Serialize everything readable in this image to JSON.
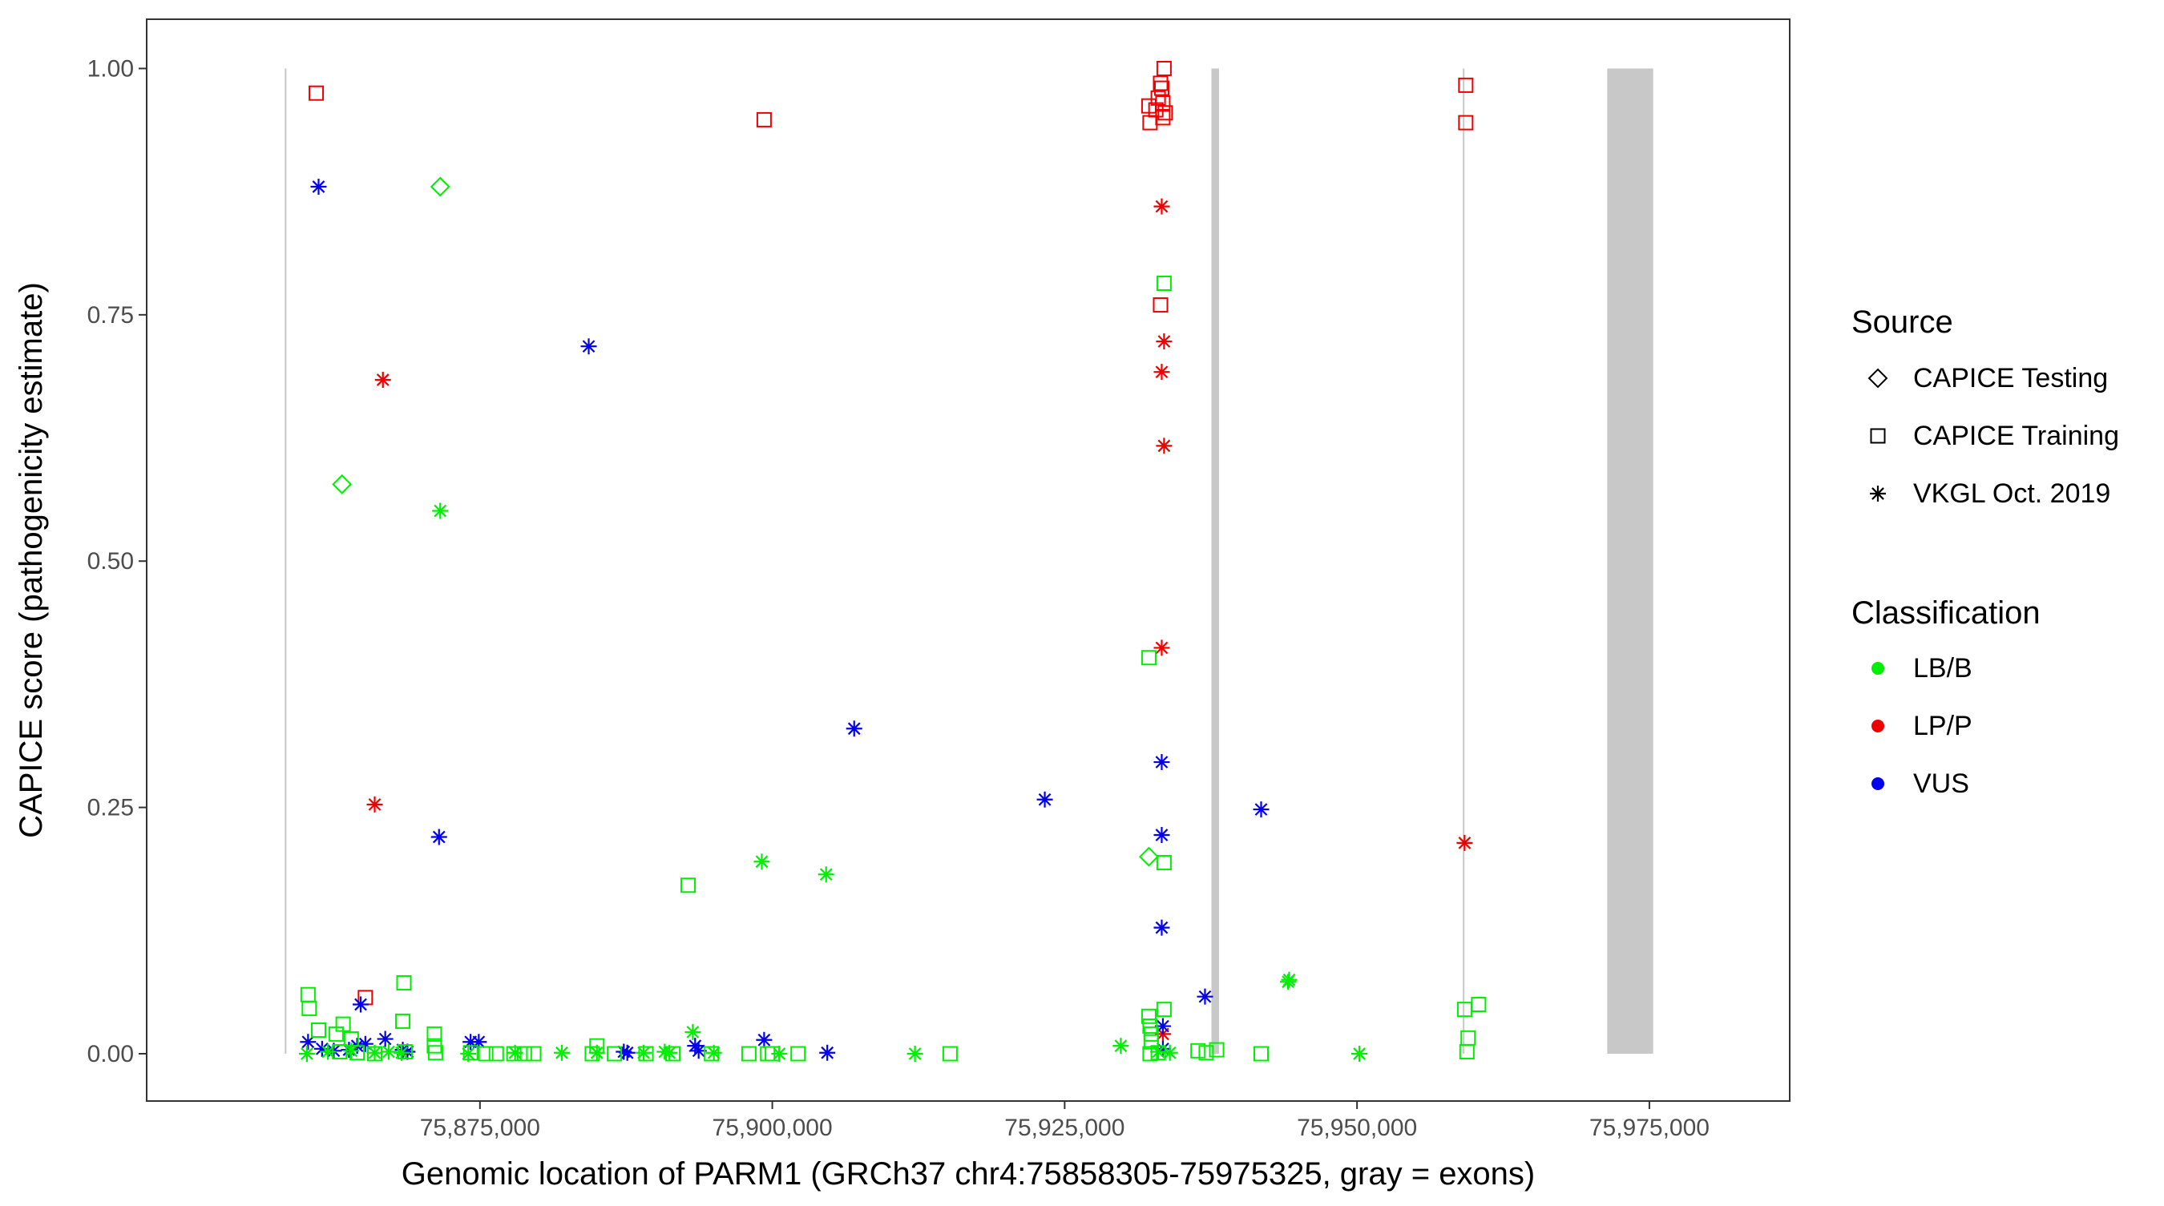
{
  "chart_data": {
    "type": "scatter",
    "xlabel": "Genomic location of PARM1 (GRCh37 chr4:75858305-75975325, gray = exons)",
    "ylabel": "CAPICE score (pathogenicity estimate)",
    "xlim": [
      75846500,
      75987000
    ],
    "ylim": [
      -0.048,
      1.05
    ],
    "x_ticks": [
      75875000,
      75900000,
      75925000,
      75950000,
      75975000
    ],
    "x_tick_labels": [
      "75,875,000",
      "75,900,000",
      "75,925,000",
      "75,950,000",
      "75,975,000"
    ],
    "y_ticks": [
      0,
      0.25,
      0.5,
      0.75,
      1.0
    ],
    "y_tick_labels": [
      "0.00",
      "0.25",
      "0.50",
      "0.75",
      "1.00"
    ],
    "grid": false,
    "legend_position": "right",
    "exons": [
      {
        "start": 75858305,
        "end": 75858450
      },
      {
        "start": 75937550,
        "end": 75938200
      },
      {
        "start": 75959050,
        "end": 75959130
      },
      {
        "start": 75971400,
        "end": 75975325
      }
    ],
    "colors": {
      "LB/B": "#00ee00",
      "LP/P": "#ee0000",
      "VUS": "#0000ee",
      "exon": "#c8c8c8"
    },
    "legends": {
      "source": {
        "title": "Source",
        "items": [
          {
            "key": "testing",
            "label": "CAPICE Testing"
          },
          {
            "key": "training",
            "label": "CAPICE Training"
          },
          {
            "key": "vkgl",
            "label": "VKGL Oct. 2019"
          }
        ]
      },
      "classification": {
        "title": "Classification",
        "items": [
          {
            "key": "LB/B",
            "label": "LB/B"
          },
          {
            "key": "LP/P",
            "label": "LP/P"
          },
          {
            "key": "VUS",
            "label": "VUS"
          }
        ]
      }
    },
    "series": [
      {
        "source": "training",
        "classification": "LP/P",
        "points": [
          [
            75861000,
            0.975
          ],
          [
            75899300,
            0.948
          ],
          [
            75865200,
            0.057
          ],
          [
            75932200,
            0.962
          ],
          [
            75932300,
            0.945
          ],
          [
            75932800,
            0.958
          ],
          [
            75933000,
            0.97
          ],
          [
            75933200,
            0.985
          ],
          [
            75933300,
            0.98
          ],
          [
            75933400,
            0.965
          ],
          [
            75933500,
            1.0
          ],
          [
            75933600,
            0.955
          ],
          [
            75933200,
            0.76
          ],
          [
            75933400,
            0.95
          ],
          [
            75959300,
            0.983
          ],
          [
            75959300,
            0.945
          ]
        ]
      },
      {
        "source": "vkgl",
        "classification": "LP/P",
        "points": [
          [
            75866700,
            0.684
          ],
          [
            75866000,
            0.253
          ],
          [
            75933300,
            0.86
          ],
          [
            75933500,
            0.723
          ],
          [
            75933300,
            0.692
          ],
          [
            75933500,
            0.617
          ],
          [
            75933300,
            0.412
          ],
          [
            75933400,
            0.02
          ],
          [
            75959200,
            0.214
          ]
        ]
      },
      {
        "source": "vkgl",
        "classification": "VUS",
        "points": [
          [
            75861200,
            0.88
          ],
          [
            75884300,
            0.718
          ],
          [
            75871500,
            0.22
          ],
          [
            75907000,
            0.33
          ],
          [
            75923300,
            0.258
          ],
          [
            75933300,
            0.296
          ],
          [
            75933300,
            0.222
          ],
          [
            75933300,
            0.128
          ],
          [
            75941800,
            0.248
          ],
          [
            75937000,
            0.058
          ],
          [
            75933400,
            0.028
          ],
          [
            75864800,
            0.05
          ],
          [
            75860300,
            0.012
          ],
          [
            75861500,
            0.005
          ],
          [
            75862500,
            0.003
          ],
          [
            75863800,
            0.004
          ],
          [
            75864500,
            0.008
          ],
          [
            75865200,
            0.01
          ],
          [
            75866900,
            0.015
          ],
          [
            75868400,
            0.004
          ],
          [
            75868800,
            0.002
          ],
          [
            75874200,
            0.012
          ],
          [
            75874900,
            0.012
          ],
          [
            75887300,
            0.002
          ],
          [
            75887600,
            0.001
          ],
          [
            75893400,
            0.008
          ],
          [
            75893700,
            0.003
          ],
          [
            75899300,
            0.014
          ],
          [
            75904700,
            0.001
          ],
          [
            75933400,
            0.005
          ]
        ]
      },
      {
        "source": "vkgl",
        "classification": "LB/B",
        "points": [
          [
            75871600,
            0.551
          ],
          [
            75899100,
            0.195
          ],
          [
            75904600,
            0.182
          ],
          [
            75893200,
            0.022
          ],
          [
            75944100,
            0.073
          ],
          [
            75944200,
            0.075
          ],
          [
            75929800,
            0.008
          ],
          [
            75860200,
            0.0
          ],
          [
            75862000,
            0.002
          ],
          [
            75864000,
            0.003
          ],
          [
            75866000,
            0.001
          ],
          [
            75867200,
            0.002
          ],
          [
            75868300,
            0.001
          ],
          [
            75874000,
            0.0
          ],
          [
            75878000,
            0.001
          ],
          [
            75882000,
            0.001
          ],
          [
            75885000,
            0.001
          ],
          [
            75889000,
            0.001
          ],
          [
            75890800,
            0.002
          ],
          [
            75891200,
            0.001
          ],
          [
            75895000,
            0.001
          ],
          [
            75900600,
            0.0
          ],
          [
            75912200,
            0.0
          ],
          [
            75933000,
            0.002
          ],
          [
            75934000,
            0.001
          ],
          [
            75950200,
            0.0
          ]
        ]
      },
      {
        "source": "testing",
        "classification": "LB/B",
        "points": [
          [
            75871600,
            0.88
          ],
          [
            75863200,
            0.578
          ],
          [
            75932200,
            0.2
          ]
        ]
      },
      {
        "source": "training",
        "classification": "LB/B",
        "points": [
          [
            75933500,
            0.782
          ],
          [
            75932200,
            0.402
          ],
          [
            75892800,
            0.171
          ],
          [
            75933500,
            0.194
          ],
          [
            75868500,
            0.072
          ],
          [
            75860300,
            0.06
          ],
          [
            75860400,
            0.046
          ],
          [
            75868400,
            0.033
          ],
          [
            75863300,
            0.03
          ],
          [
            75861200,
            0.024
          ],
          [
            75862700,
            0.02
          ],
          [
            75864000,
            0.015
          ],
          [
            75871100,
            0.02
          ],
          [
            75871100,
            0.008
          ],
          [
            75885000,
            0.008
          ],
          [
            75932200,
            0.038
          ],
          [
            75932300,
            0.028
          ],
          [
            75932400,
            0.02
          ],
          [
            75932400,
            0.012
          ],
          [
            75933500,
            0.045
          ],
          [
            75959200,
            0.045
          ],
          [
            75960400,
            0.05
          ],
          [
            75959500,
            0.016
          ],
          [
            75959400,
            0.002
          ],
          [
            75863000,
            0.002
          ],
          [
            75864500,
            0.001
          ],
          [
            75866000,
            0.0
          ],
          [
            75868600,
            0.002
          ],
          [
            75871200,
            0.001
          ],
          [
            75874200,
            0.001
          ],
          [
            75875500,
            0.0
          ],
          [
            75876400,
            0.0
          ],
          [
            75877900,
            0.0
          ],
          [
            75878800,
            0.0
          ],
          [
            75879600,
            0.0
          ],
          [
            75884600,
            0.0
          ],
          [
            75886500,
            0.0
          ],
          [
            75889200,
            0.0
          ],
          [
            75891500,
            0.0
          ],
          [
            75894800,
            0.0
          ],
          [
            75898000,
            0.0
          ],
          [
            75899600,
            0.0
          ],
          [
            75900000,
            0.0
          ],
          [
            75902200,
            0.0
          ],
          [
            75915200,
            0.0
          ],
          [
            75932300,
            0.0
          ],
          [
            75933000,
            0.001
          ],
          [
            75936400,
            0.003
          ],
          [
            75937100,
            0.001
          ],
          [
            75938000,
            0.004
          ],
          [
            75941800,
            0.0
          ]
        ]
      }
    ]
  }
}
